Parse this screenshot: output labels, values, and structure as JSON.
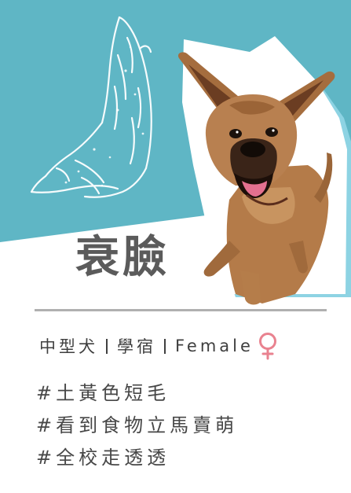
{
  "profile": {
    "name": "衰臉",
    "size": "中型犬",
    "location": "學宿",
    "gender": "Female",
    "gender_icon": "female-symbol-icon",
    "tags": [
      "#土黃色短毛",
      "#看到食物立馬賣萌",
      "#全校走透透"
    ]
  },
  "colors": {
    "background_teal": "#5fb6c5",
    "female_pink": "#e9828f",
    "text_gray": "#474747"
  }
}
